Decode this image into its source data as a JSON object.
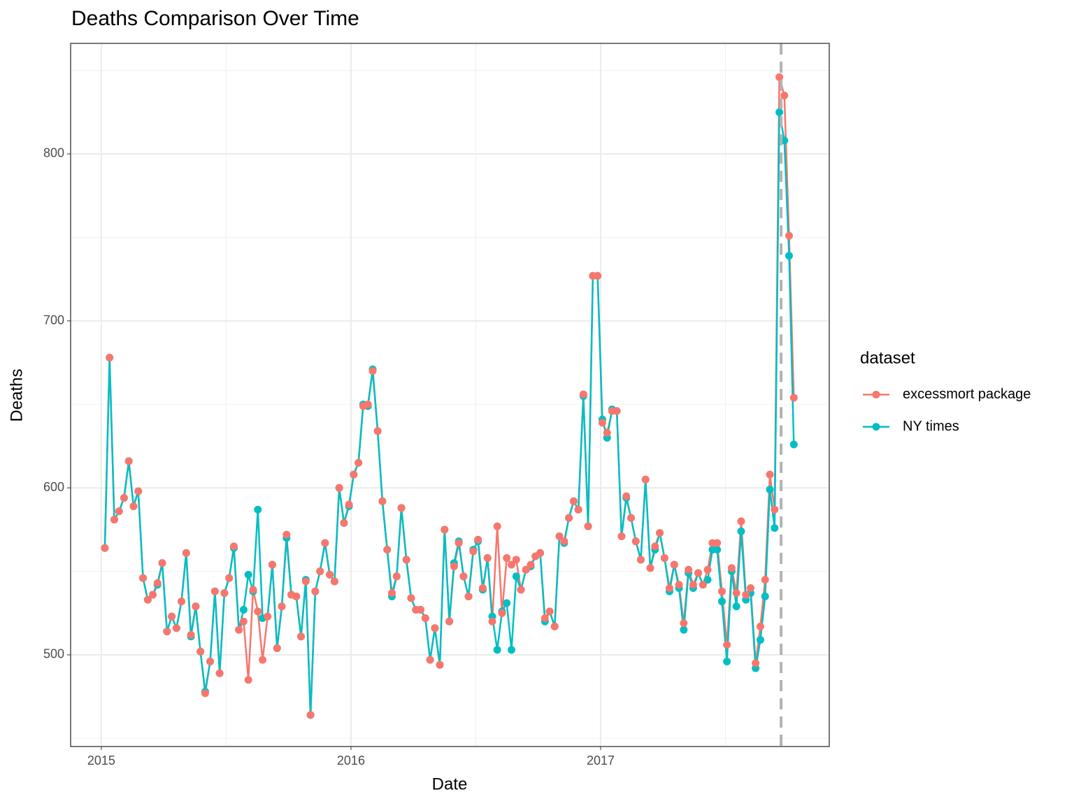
{
  "chart_data": {
    "type": "line",
    "title": "Deaths Comparison Over Time",
    "xlabel": "Date",
    "ylabel": "Deaths",
    "legend_title": "dataset",
    "legend": "right",
    "grid": true,
    "xlim": [
      2014.877,
      2017.916
    ],
    "ylim": [
      445.1,
      866.2
    ],
    "xticks": [
      2015,
      2016,
      2017
    ],
    "yticks": [
      500,
      600,
      700,
      800
    ],
    "vline": 2017.723,
    "vline_color": "#b3b3b3",
    "x": [
      2015.014,
      2015.033,
      2015.052,
      2015.071,
      2015.091,
      2015.11,
      2015.129,
      2015.148,
      2015.167,
      2015.186,
      2015.206,
      2015.225,
      2015.244,
      2015.263,
      2015.282,
      2015.301,
      2015.321,
      2015.34,
      2015.359,
      2015.378,
      2015.397,
      2015.416,
      2015.436,
      2015.455,
      2015.474,
      2015.493,
      2015.512,
      2015.531,
      2015.551,
      2015.57,
      2015.589,
      2015.608,
      2015.627,
      2015.646,
      2015.666,
      2015.685,
      2015.704,
      2015.723,
      2015.742,
      2015.761,
      2015.781,
      2015.8,
      2015.819,
      2015.838,
      2015.857,
      2015.876,
      2015.896,
      2015.915,
      2015.934,
      2015.953,
      2015.972,
      2015.992,
      2016.011,
      2016.03,
      2016.049,
      2016.068,
      2016.087,
      2016.107,
      2016.126,
      2016.145,
      2016.164,
      2016.183,
      2016.202,
      2016.222,
      2016.241,
      2016.26,
      2016.279,
      2016.298,
      2016.317,
      2016.336,
      2016.356,
      2016.375,
      2016.394,
      2016.413,
      2016.432,
      2016.451,
      2016.471,
      2016.49,
      2016.509,
      2016.528,
      2016.547,
      2016.566,
      2016.586,
      2016.605,
      2016.624,
      2016.643,
      2016.662,
      2016.681,
      2016.701,
      2016.72,
      2016.739,
      2016.758,
      2016.777,
      2016.796,
      2016.816,
      2016.835,
      2016.854,
      2016.873,
      2016.892,
      2016.911,
      2016.931,
      2016.95,
      2016.969,
      2016.988,
      2017.007,
      2017.026,
      2017.046,
      2017.065,
      2017.084,
      2017.103,
      2017.122,
      2017.141,
      2017.161,
      2017.18,
      2017.199,
      2017.218,
      2017.237,
      2017.256,
      2017.276,
      2017.295,
      2017.314,
      2017.333,
      2017.352,
      2017.371,
      2017.391,
      2017.41,
      2017.429,
      2017.448,
      2017.467,
      2017.486,
      2017.506,
      2017.525,
      2017.544,
      2017.563,
      2017.582,
      2017.601,
      2017.621,
      2017.64,
      2017.659,
      2017.678,
      2017.697,
      2017.716,
      2017.736,
      2017.755,
      2017.774
    ],
    "series": [
      {
        "name": "excessmort package",
        "color": "#F8766D",
        "values": [
          564,
          678,
          581,
          586,
          594,
          616,
          589,
          598,
          546,
          533,
          536,
          543,
          555,
          514,
          523,
          516,
          532,
          561,
          512,
          529,
          502,
          477,
          496,
          538,
          489,
          537,
          546,
          565,
          515,
          520,
          485,
          539,
          526,
          497,
          523,
          554,
          504,
          529,
          572,
          536,
          535,
          511,
          544,
          464,
          538,
          550,
          567,
          548,
          544,
          600,
          579,
          590,
          608,
          615,
          649,
          650,
          670,
          634,
          592,
          563,
          537,
          547,
          588,
          557,
          534,
          527,
          527,
          522,
          497,
          516,
          494,
          575,
          520,
          553,
          567,
          547,
          535,
          562,
          569,
          540,
          558,
          520,
          577,
          525,
          558,
          554,
          557,
          539,
          551,
          554,
          559,
          561,
          522,
          526,
          517,
          571,
          568,
          582,
          592,
          587,
          656,
          577,
          727,
          727,
          639,
          633,
          646,
          646,
          571,
          595,
          582,
          568,
          557,
          605,
          552,
          565,
          573,
          558,
          540,
          554,
          542,
          519,
          551,
          542,
          549,
          542,
          551,
          567,
          567,
          538,
          506,
          552,
          537,
          580,
          536,
          540,
          495,
          517,
          545,
          608,
          587,
          846,
          835,
          751,
          654
        ]
      },
      {
        "name": "NY times",
        "color": "#00BFC4",
        "values": [
          564,
          678,
          581,
          586,
          594,
          616,
          589,
          598,
          546,
          533,
          536,
          542,
          555,
          514,
          523,
          516,
          532,
          561,
          511,
          529,
          502,
          478,
          496,
          538,
          489,
          537,
          546,
          564,
          515,
          527,
          548,
          538,
          587,
          522,
          523,
          554,
          504,
          529,
          570,
          536,
          535,
          511,
          545,
          464,
          538,
          550,
          567,
          548,
          544,
          600,
          579,
          589,
          608,
          615,
          650,
          649,
          671,
          634,
          592,
          563,
          535,
          547,
          588,
          557,
          534,
          527,
          527,
          522,
          497,
          516,
          494,
          575,
          520,
          555,
          568,
          547,
          535,
          563,
          568,
          539,
          558,
          523,
          503,
          526,
          531,
          503,
          547,
          539,
          551,
          553,
          559,
          561,
          520,
          526,
          517,
          571,
          567,
          582,
          592,
          587,
          655,
          577,
          727,
          727,
          641,
          630,
          647,
          646,
          571,
          594,
          582,
          568,
          557,
          605,
          552,
          563,
          573,
          558,
          538,
          554,
          540,
          515,
          549,
          540,
          549,
          542,
          545,
          563,
          563,
          532,
          496,
          550,
          529,
          574,
          533,
          537,
          492,
          509,
          535,
          599,
          576,
          825,
          808,
          739,
          626
        ]
      }
    ]
  }
}
